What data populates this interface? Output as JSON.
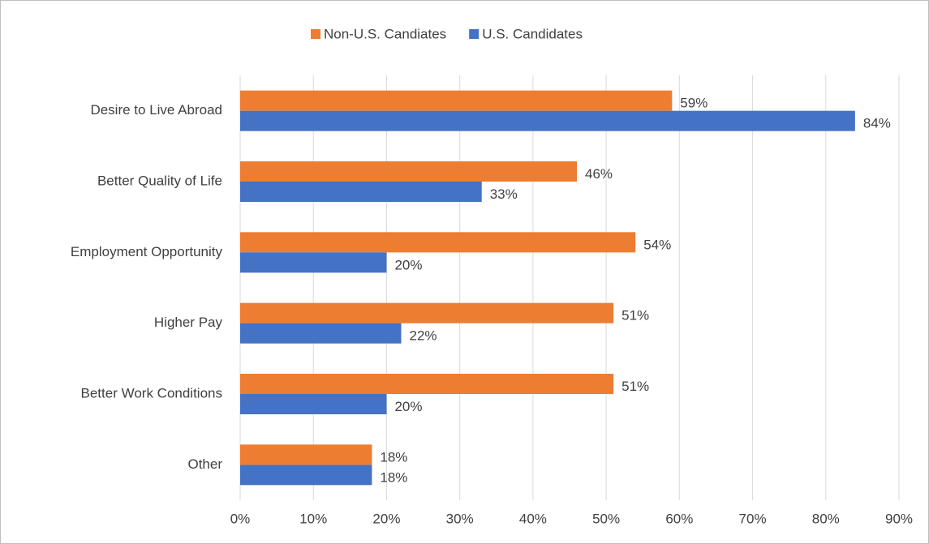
{
  "chart_data": {
    "type": "hbar",
    "categories": [
      "Desire to Live Abroad",
      "Better Quality of Life",
      "Employment Opportunity",
      "Higher Pay",
      "Better Work Conditions",
      "Other"
    ],
    "series": [
      {
        "name": "Non-U.S. Candiates",
        "color": "#ED7D31",
        "values": [
          59,
          46,
          54,
          51,
          51,
          18
        ],
        "value_labels": [
          "59%",
          "46%",
          "54%",
          "51%",
          "51%",
          "18%"
        ]
      },
      {
        "name": "U.S. Candidates",
        "color": "#4472C4",
        "values": [
          84,
          33,
          20,
          22,
          20,
          18
        ],
        "value_labels": [
          "84%",
          "33%",
          "20%",
          "22%",
          "20%",
          "18%"
        ]
      }
    ],
    "xlim": [
      0,
      90
    ],
    "xticks": [
      {
        "value": 0,
        "label": "0%"
      },
      {
        "value": 10,
        "label": "10%"
      },
      {
        "value": 20,
        "label": "20%"
      },
      {
        "value": 30,
        "label": "30%"
      },
      {
        "value": 40,
        "label": "40%"
      },
      {
        "value": 50,
        "label": "50%"
      },
      {
        "value": 60,
        "label": "60%"
      },
      {
        "value": 70,
        "label": "70%"
      },
      {
        "value": 80,
        "label": "80%"
      },
      {
        "value": 90,
        "label": "90%"
      }
    ],
    "grid": true,
    "legend": "top"
  }
}
